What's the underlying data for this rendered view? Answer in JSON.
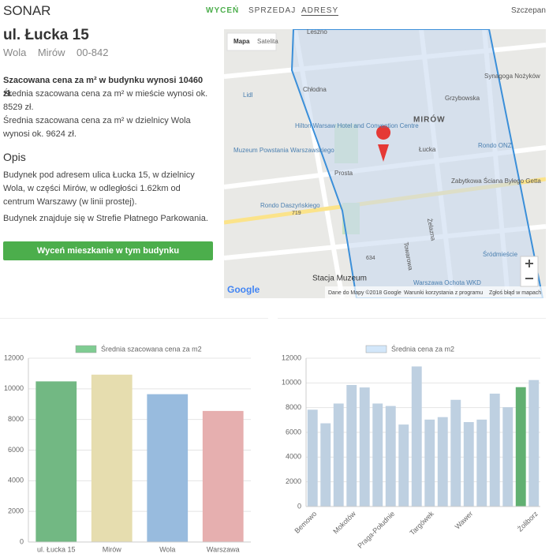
{
  "header": {
    "logo": "SONAR",
    "nav": [
      "WYCEŃ",
      "SPRZEDAJ",
      "ADRESY"
    ],
    "user": "Szczepan"
  },
  "address": {
    "title": "ul. Łucka 15",
    "district": "Wola",
    "area": "Mirów",
    "postcode": "00-842"
  },
  "summary": [
    "Szacowana cena za m² w budynku wynosi 10460 zł.",
    "Średnia szacowana cena za m² w mieście wynosi ok. 8529 zł.",
    "Średnia szacowana cena za m² w dzielnicy Wola wynosi ok. 9624 zł."
  ],
  "description": {
    "heading": "Opis",
    "paragraphs": [
      "Budynek pod adresem ulica Łucka 15, w dzielnicy Wola, w części Mirów, w odległości 1.62km od centrum Warszawy (w linii prostej).",
      "Budynek znajduje się w Strefie Płatnego Parkowania."
    ]
  },
  "button": "Wyceń mieszkanie w tym budynku",
  "map": {
    "tabs": [
      "Mapa",
      "Satelita"
    ],
    "labels": [
      "Leszno",
      "Chłodna",
      "Grzybowska",
      "MIRÓW",
      "Hilton Warsaw Hotel and Convention Centre",
      "Muzeum Powstania Warszawskiego",
      "Łucka",
      "Prosta",
      "Rondo Daszyńskiego",
      "Rondo ONZ",
      "Zabytkowa Ściana Byłego Getta",
      "Synagoga Nożyków",
      "Żelazna",
      "Towarowa",
      "Lidl",
      "Stacja Muzeum",
      "Warszawa Ochota WKD",
      "Śródmieście",
      "719",
      "634"
    ],
    "logo": "Google",
    "footer": [
      "Dane do Mapy ©2018 Google",
      "Warunki korzystania z programu",
      "Zgłoś błąd w mapach"
    ]
  },
  "chart_data": [
    {
      "type": "bar",
      "categories": [
        "ul. Łucka 15",
        "Mirów",
        "Wola",
        "Warszawa"
      ],
      "series": [
        {
          "name": "Średnia szacowana cena za m2",
          "colors": [
            "#7fcc92",
            "#fff5c2",
            "#a9d0f7",
            "#ffc2c2"
          ],
          "values": [
            10460,
            10900,
            9624,
            8529
          ]
        }
      ],
      "ylim": [
        0,
        12000
      ],
      "yticks": [
        0,
        2000,
        4000,
        6000,
        8000,
        10000,
        12000
      ],
      "grid": true
    },
    {
      "type": "bar",
      "categories": [
        "Bemowo",
        null,
        null,
        "Mokotów",
        null,
        null,
        "Praga-Południe",
        null,
        null,
        "Targówek",
        null,
        null,
        "Wawer",
        null,
        null,
        null,
        null,
        "Żoliborz"
      ],
      "series": [
        {
          "name": "Średnia cena za m2",
          "colors": [
            "#d3e7fa",
            "#d3e7fa",
            "#d3e7fa",
            "#d3e7fa",
            "#d3e7fa",
            "#d3e7fa",
            "#d3e7fa",
            "#d3e7fa",
            "#d3e7fa",
            "#d3e7fa",
            "#d3e7fa",
            "#d3e7fa",
            "#d3e7fa",
            "#d3e7fa",
            "#d3e7fa",
            "#d3e7fa",
            "#6cc47e",
            "#d3e7fa"
          ],
          "values": [
            7800,
            6700,
            8300,
            9800,
            9600,
            8300,
            8100,
            6600,
            11300,
            7000,
            7200,
            8600,
            6800,
            7000,
            9100,
            8000,
            9624,
            10200
          ]
        }
      ],
      "ylim": [
        0,
        12000
      ],
      "yticks": [
        0,
        2000,
        4000,
        6000,
        8000,
        10000,
        12000
      ],
      "grid": true
    }
  ]
}
